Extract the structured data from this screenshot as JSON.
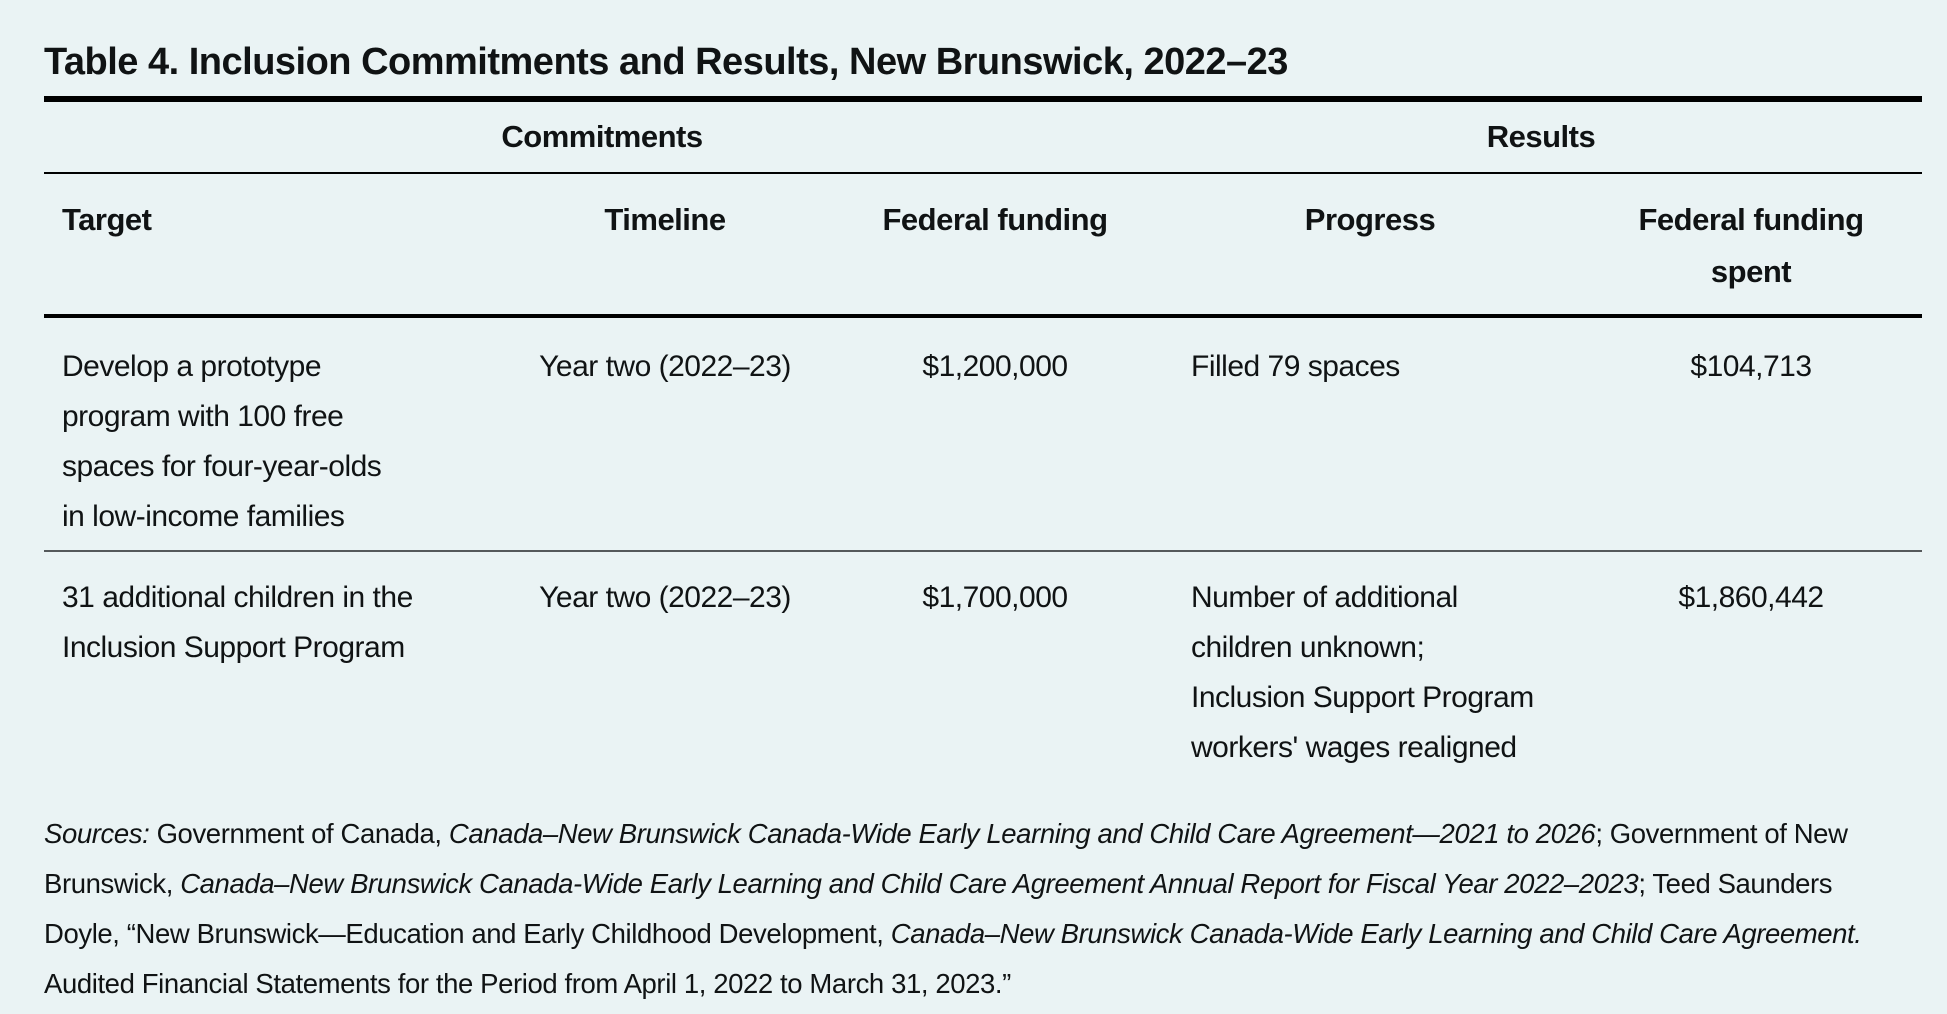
{
  "colors": {
    "background": "#eaf3f4",
    "text": "#101314",
    "rule": "#000000",
    "row_divider": "#55595b"
  },
  "table": {
    "title": "Table 4. Inclusion Commitments and Results, New Brunswick, 2022–23",
    "group_headers": [
      {
        "label": "Commitments"
      },
      {
        "label": "Results"
      }
    ],
    "columns": [
      "Target",
      "Timeline",
      "Federal funding",
      "Progress",
      "Federal funding spent"
    ],
    "rows": [
      {
        "target": "Develop a prototype\nprogram with 100 free\nspaces for four-year-olds\nin low-income families",
        "timeline": "Year two (2022–23)",
        "federal_funding": "$1,200,000",
        "progress": "Filled 79 spaces",
        "federal_funding_spent": "$104,713"
      },
      {
        "target": "31 additional children in the\nInclusion Support Program",
        "timeline": "Year two (2022–23)",
        "federal_funding": "$1,700,000",
        "progress": "Number of additional\nchildren unknown;\nInclusion Support Program\nworkers' wages realigned",
        "federal_funding_spent": "$1,860,442"
      }
    ]
  },
  "sources": {
    "lines": [
      [
        {
          "text": "Sources:",
          "italic": true
        },
        {
          "text": " Government of Canada, ",
          "italic": false
        },
        {
          "text": "Canada–New Brunswick Canada-Wide Early Learning and Child Care Agreement—2021 to 2026",
          "italic": true
        },
        {
          "text": "; Government of New",
          "italic": false
        }
      ],
      [
        {
          "text": "Brunswick, ",
          "italic": false
        },
        {
          "text": "Canada–New Brunswick Canada-Wide Early Learning and Child Care Agreement Annual Report for Fiscal Year 2022–2023",
          "italic": true
        },
        {
          "text": "; Teed Saunders",
          "italic": false
        }
      ],
      [
        {
          "text": "Doyle, “New Brunswick—Education and Early Childhood Development, ",
          "italic": false
        },
        {
          "text": "Canada–New Brunswick Canada-Wide Early Learning and Child Care Agreement.",
          "italic": true
        }
      ],
      [
        {
          "text": "Audited Financial Statements for the Period from April 1, 2022 to March 31, 2023.”",
          "italic": false
        }
      ]
    ]
  }
}
